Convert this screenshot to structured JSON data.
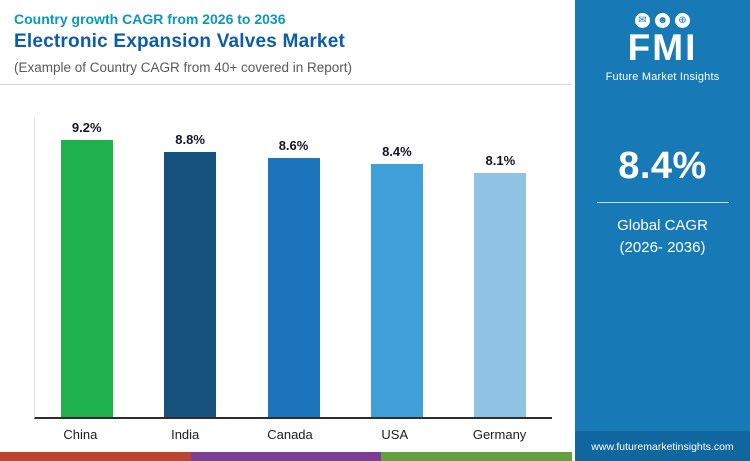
{
  "header": {
    "eyebrow": "Country growth CAGR from 2026 to 2036",
    "title": "Electronic Expansion Valves Market",
    "subtitle": "(Example of Country CAGR from 40+ covered in Report)"
  },
  "chart_data": {
    "type": "bar",
    "categories": [
      "China",
      "India",
      "Canada",
      "USA",
      "Germany"
    ],
    "values": [
      9.2,
      8.8,
      8.6,
      8.4,
      8.1
    ],
    "value_labels": [
      "9.2%",
      "8.8%",
      "8.6%",
      "8.4%",
      "8.1%"
    ],
    "bar_colors": [
      "#1fb14c",
      "#17527f",
      "#1c75bc",
      "#3f9fd8",
      "#8fc3e3"
    ],
    "title": "Country growth CAGR from 2026 to 2036",
    "xlabel": "",
    "ylabel": "",
    "ylim": [
      0,
      9.2
    ],
    "grid": false,
    "legend": false
  },
  "sidebar": {
    "background": "#1779b5",
    "logo_text": "FMI",
    "logo_caption": "Future Market Insights",
    "icons": [
      "✉",
      "☻",
      "⊕"
    ],
    "stat_value": "8.4%",
    "stat_caption_1": "Global CAGR",
    "stat_caption_2": "(2026- 2036)",
    "website": "www.futuremarketinsights.com"
  },
  "footer": {
    "strip_colors": [
      "#bf4430",
      "#7c3d97",
      "#64a03c"
    ]
  }
}
